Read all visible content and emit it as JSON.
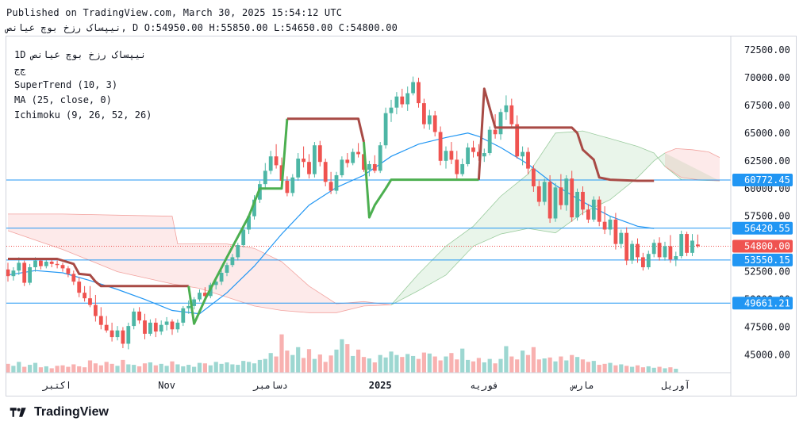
{
  "header": {
    "published": "Published on TradingView.com, March 30, 2025 15:54:12 UTC",
    "symbol_line": "نیپساک رزخ بوچ عیانص, D O:54950.00 H:55850.00 L:54650.00 C:54800.00"
  },
  "legend": {
    "symbol": "1D  نیپساک رزخ بوچ عیانص",
    "exchange": "ج‌ج",
    "indicators": [
      "SuperTrend (10, 3)",
      "MA (25, close, 0)",
      "Ichimoku (9, 26, 52, 26)"
    ]
  },
  "brand": {
    "name": "TradingView"
  },
  "colors": {
    "up": "#4db6a5",
    "down": "#ef5350",
    "supertrend_up": "#4caf50",
    "supertrend_down": "#a84a45",
    "ma": "#2196f3",
    "level": "#2196f3",
    "price_badge": "#ef5350",
    "level_badge": "#2196f3"
  },
  "chart_data": {
    "type": "candlestick",
    "timeframe": "1D",
    "ylim": [
      43500,
      73500
    ],
    "y_ticks": [
      45000,
      47500,
      50000,
      52500,
      55000,
      57500,
      60000,
      62500,
      65000,
      67500,
      70000,
      72500
    ],
    "y_tick_labels": [
      "45000.00",
      "47500.00",
      "50000.00",
      "52500.00",
      "55000.00",
      "57500.00",
      "60000.00",
      "62500.00",
      "65000.00",
      "67500.00",
      "70000.00",
      "72500.00"
    ],
    "x_labels": [
      {
        "label": "اکتبر",
        "i": 9
      },
      {
        "label": "Nov",
        "i": 29
      },
      {
        "label": "دسامبر",
        "i": 48
      },
      {
        "label": "2025",
        "i": 68,
        "bold": true
      },
      {
        "label": "فوریه",
        "i": 87
      },
      {
        "label": "مارس",
        "i": 105
      },
      {
        "label": "آوریل",
        "i": 122
      }
    ],
    "price_levels": [
      {
        "value": 60772.45,
        "label": "60772.45",
        "style": "solid"
      },
      {
        "value": 56420.55,
        "label": "56420.55",
        "style": "solid"
      },
      {
        "value": 53550.15,
        "label": "53550.15",
        "style": "solid"
      },
      {
        "value": 49661.21,
        "label": "49661.21",
        "style": "solid"
      }
    ],
    "last_price": {
      "value": 54800.0,
      "label": "54800.00"
    },
    "ohlc_last": {
      "open": 54950.0,
      "high": 55850.0,
      "low": 54650.0,
      "close": 54800.0
    },
    "candles": [
      [
        52700,
        53300,
        51600,
        52100
      ],
      [
        52100,
        52900,
        51700,
        52600
      ],
      [
        52600,
        53800,
        52200,
        53300
      ],
      [
        53300,
        53500,
        51200,
        51500
      ],
      [
        51500,
        53200,
        51300,
        52900
      ],
      [
        52900,
        53800,
        52500,
        53500
      ],
      [
        53500,
        53700,
        52700,
        53000
      ],
      [
        53000,
        53600,
        52800,
        53400
      ],
      [
        53400,
        53700,
        52900,
        53200
      ],
      [
        53200,
        53500,
        52800,
        53100
      ],
      [
        53100,
        53300,
        52500,
        52800
      ],
      [
        52800,
        53000,
        52000,
        52300
      ],
      [
        52300,
        52600,
        51300,
        51600
      ],
      [
        51600,
        52000,
        50200,
        50600
      ],
      [
        50600,
        51200,
        49800,
        50100
      ],
      [
        50100,
        51200,
        49300,
        49500
      ],
      [
        49500,
        50400,
        48000,
        48500
      ],
      [
        48500,
        49300,
        47300,
        47700
      ],
      [
        47700,
        48500,
        47000,
        47200
      ],
      [
        47200,
        47900,
        46200,
        46600
      ],
      [
        46600,
        47600,
        46300,
        47200
      ],
      [
        47200,
        47500,
        45600,
        46000
      ],
      [
        46000,
        47900,
        45500,
        47600
      ],
      [
        47600,
        49200,
        47300,
        48900
      ],
      [
        48900,
        49300,
        47800,
        48100
      ],
      [
        48100,
        48700,
        46400,
        46900
      ],
      [
        46900,
        48200,
        46700,
        47900
      ],
      [
        47900,
        48300,
        46600,
        47100
      ],
      [
        47100,
        48100,
        46800,
        47700
      ],
      [
        47700,
        48400,
        47200,
        48000
      ],
      [
        48000,
        48200,
        46800,
        47300
      ],
      [
        47300,
        48200,
        47000,
        47900
      ],
      [
        47900,
        49400,
        47600,
        49200
      ],
      [
        49200,
        49900,
        48700,
        49400
      ],
      [
        49400,
        50200,
        49100,
        50000
      ],
      [
        50000,
        50900,
        49800,
        50600
      ],
      [
        50600,
        51100,
        49900,
        50300
      ],
      [
        50300,
        51500,
        50100,
        51300
      ],
      [
        51300,
        51900,
        50900,
        51600
      ],
      [
        51600,
        52600,
        51300,
        52400
      ],
      [
        52400,
        53300,
        52100,
        53100
      ],
      [
        53100,
        54100,
        52900,
        53800
      ],
      [
        53800,
        55100,
        53500,
        54900
      ],
      [
        54900,
        56600,
        54700,
        56300
      ],
      [
        56300,
        57700,
        55900,
        57500
      ],
      [
        57500,
        59400,
        57200,
        59000
      ],
      [
        59000,
        60700,
        58700,
        60400
      ],
      [
        60400,
        62300,
        59900,
        61600
      ],
      [
        61600,
        63400,
        61300,
        62900
      ],
      [
        62900,
        64000,
        61800,
        62100
      ],
      [
        62100,
        62800,
        60300,
        60700
      ],
      [
        60700,
        61100,
        59300,
        59600
      ],
      [
        59600,
        61300,
        59300,
        61000
      ],
      [
        61000,
        63200,
        60700,
        62700
      ],
      [
        62700,
        63800,
        61900,
        62400
      ],
      [
        62400,
        63100,
        60900,
        61300
      ],
      [
        61300,
        64200,
        61000,
        63900
      ],
      [
        63900,
        64300,
        62000,
        62400
      ],
      [
        62400,
        62700,
        60200,
        60600
      ],
      [
        60600,
        61500,
        59500,
        59800
      ],
      [
        59800,
        61500,
        59500,
        61200
      ],
      [
        61200,
        62900,
        61000,
        62600
      ],
      [
        62600,
        63200,
        61900,
        62300
      ],
      [
        62300,
        63600,
        62100,
        63300
      ],
      [
        63300,
        64100,
        62800,
        63100
      ],
      [
        63100,
        63500,
        61500,
        61700
      ],
      [
        61700,
        62500,
        61100,
        62200
      ],
      [
        62200,
        63000,
        61400,
        61600
      ],
      [
        61600,
        64200,
        61400,
        63900
      ],
      [
        63900,
        67300,
        63600,
        66800
      ],
      [
        66800,
        68000,
        66000,
        67300
      ],
      [
        67300,
        68700,
        66700,
        68300
      ],
      [
        68300,
        69000,
        67300,
        67600
      ],
      [
        67600,
        69200,
        67000,
        68600
      ],
      [
        68600,
        70100,
        68400,
        69600
      ],
      [
        69600,
        70000,
        67300,
        67700
      ],
      [
        67700,
        68100,
        65400,
        65800
      ],
      [
        65800,
        67100,
        65300,
        66600
      ],
      [
        66600,
        67000,
        64700,
        65100
      ],
      [
        65100,
        65600,
        62100,
        62500
      ],
      [
        62500,
        63800,
        61800,
        63400
      ],
      [
        63400,
        64200,
        62200,
        62600
      ],
      [
        62600,
        63400,
        60900,
        61300
      ],
      [
        61300,
        62700,
        61100,
        62200
      ],
      [
        62200,
        64100,
        62000,
        63700
      ],
      [
        63700,
        64300,
        62800,
        63300
      ],
      [
        63300,
        64000,
        62500,
        62900
      ],
      [
        62900,
        63600,
        62400,
        63200
      ],
      [
        63200,
        65600,
        63000,
        65300
      ],
      [
        65300,
        66700,
        64500,
        64900
      ],
      [
        64900,
        67200,
        64400,
        66900
      ],
      [
        66900,
        68400,
        66200,
        67500
      ],
      [
        67500,
        68100,
        65400,
        65800
      ],
      [
        65800,
        66600,
        62700,
        62900
      ],
      [
        62900,
        63800,
        62100,
        63300
      ],
      [
        63300,
        63700,
        61300,
        61800
      ],
      [
        61800,
        62100,
        59700,
        60200
      ],
      [
        60200,
        60700,
        58400,
        58800
      ],
      [
        58800,
        60900,
        58500,
        60600
      ],
      [
        60600,
        61200,
        56900,
        57300
      ],
      [
        57300,
        60500,
        57000,
        60100
      ],
      [
        60100,
        61300,
        58100,
        58500
      ],
      [
        58500,
        61200,
        58000,
        60900
      ],
      [
        60900,
        61600,
        57000,
        57400
      ],
      [
        57400,
        60000,
        57100,
        59700
      ],
      [
        59700,
        60200,
        57600,
        58100
      ],
      [
        58100,
        58600,
        56900,
        57200
      ],
      [
        57200,
        59300,
        57000,
        59000
      ],
      [
        59000,
        59300,
        56600,
        57000
      ],
      [
        57000,
        58400,
        55900,
        56300
      ],
      [
        56300,
        57500,
        55800,
        57200
      ],
      [
        57200,
        57800,
        54500,
        55000
      ],
      [
        55000,
        56300,
        54600,
        56000
      ],
      [
        56000,
        56500,
        53100,
        53500
      ],
      [
        53500,
        55300,
        53200,
        55000
      ],
      [
        55000,
        55500,
        53300,
        53800
      ],
      [
        53800,
        54200,
        52600,
        52900
      ],
      [
        52900,
        54400,
        52700,
        54100
      ],
      [
        54100,
        55400,
        53800,
        55100
      ],
      [
        55100,
        55600,
        53500,
        53800
      ],
      [
        53800,
        55200,
        53500,
        54800
      ],
      [
        54800,
        55800,
        53300,
        53600
      ],
      [
        53600,
        54300,
        53000,
        53900
      ],
      [
        53900,
        56200,
        53700,
        55900
      ],
      [
        55900,
        56100,
        53900,
        54200
      ],
      [
        54200,
        55900,
        53900,
        55300
      ],
      [
        54950,
        55850,
        54650,
        54800
      ]
    ],
    "volume": [
      18,
      14,
      22,
      12,
      16,
      20,
      11,
      13,
      9,
      14,
      15,
      12,
      17,
      13,
      11,
      25,
      19,
      15,
      22,
      18,
      14,
      26,
      17,
      16,
      13,
      19,
      21,
      15,
      18,
      14,
      23,
      17,
      13,
      16,
      12,
      20,
      19,
      15,
      22,
      18,
      21,
      17,
      16,
      24,
      22,
      19,
      26,
      28,
      40,
      33,
      78,
      45,
      36,
      52,
      30,
      48,
      28,
      37,
      22,
      35,
      47,
      68,
      58,
      34,
      47,
      32,
      29,
      21,
      36,
      31,
      43,
      36,
      32,
      38,
      34,
      28,
      41,
      39,
      33,
      25,
      33,
      40,
      27,
      49,
      26,
      23,
      30,
      21,
      28,
      19,
      28,
      54,
      33,
      27,
      45,
      36,
      52,
      27,
      29,
      31,
      23,
      33,
      25,
      36,
      32,
      27,
      22,
      24,
      16,
      18,
      20,
      15,
      17,
      14,
      12,
      15,
      11,
      13,
      10,
      12,
      9,
      11,
      8
    ],
    "supertrend": [
      [
        0,
        53650,
        "down"
      ],
      [
        9,
        53650,
        "down"
      ],
      [
        12,
        53200,
        "down"
      ],
      [
        13,
        52300,
        "down"
      ],
      [
        15,
        52200,
        "down"
      ],
      [
        16,
        51600,
        "down"
      ],
      [
        17,
        51200,
        "down"
      ],
      [
        33,
        51200,
        "down"
      ],
      [
        33,
        51200,
        "up"
      ],
      [
        34,
        47800,
        "up"
      ],
      [
        36,
        50000,
        "up"
      ],
      [
        40,
        53800,
        "up"
      ],
      [
        44,
        57500,
        "up"
      ],
      [
        46,
        60000,
        "up"
      ],
      [
        49,
        60000,
        "up"
      ],
      [
        50,
        60000,
        "up"
      ],
      [
        51,
        66300,
        "up"
      ],
      [
        51,
        66300,
        "down"
      ],
      [
        64,
        66300,
        "down"
      ],
      [
        65,
        64200,
        "down"
      ],
      [
        65,
        64200,
        "up"
      ],
      [
        66,
        57400,
        "up"
      ],
      [
        67,
        58500,
        "up"
      ],
      [
        69,
        60000,
        "up"
      ],
      [
        70,
        60800,
        "up"
      ],
      [
        84,
        60800,
        "up"
      ],
      [
        86,
        60800,
        "up"
      ],
      [
        86,
        60800,
        "down"
      ],
      [
        87,
        69000,
        "down"
      ],
      [
        89,
        65500,
        "down"
      ],
      [
        103,
        65500,
        "down"
      ],
      [
        104,
        65000,
        "down"
      ],
      [
        105,
        63500,
        "down"
      ],
      [
        107,
        62600,
        "down"
      ],
      [
        108,
        61000,
        "down"
      ],
      [
        110,
        60800,
        "down"
      ],
      [
        115,
        60700,
        "down"
      ],
      [
        118,
        60700,
        "down"
      ]
    ],
    "ma": [
      [
        0,
        52200
      ],
      [
        5,
        52600
      ],
      [
        10,
        52400
      ],
      [
        15,
        51700
      ],
      [
        20,
        50900
      ],
      [
        25,
        50000
      ],
      [
        30,
        49000
      ],
      [
        35,
        48700
      ],
      [
        40,
        50600
      ],
      [
        45,
        53000
      ],
      [
        50,
        55900
      ],
      [
        55,
        58500
      ],
      [
        60,
        60100
      ],
      [
        65,
        61200
      ],
      [
        70,
        62900
      ],
      [
        75,
        64000
      ],
      [
        80,
        64600
      ],
      [
        84,
        65000
      ],
      [
        86,
        64700
      ],
      [
        90,
        63700
      ],
      [
        95,
        62200
      ],
      [
        100,
        60300
      ],
      [
        105,
        58800
      ],
      [
        110,
        57500
      ],
      [
        115,
        56600
      ],
      [
        118,
        56400
      ]
    ],
    "cloud_bull": [
      [
        70,
        49500
      ],
      [
        75,
        52300
      ],
      [
        80,
        54800
      ],
      [
        85,
        56600
      ],
      [
        90,
        59300
      ],
      [
        95,
        61300
      ],
      [
        100,
        65000
      ],
      [
        105,
        65200
      ],
      [
        110,
        64500
      ],
      [
        115,
        63800
      ],
      [
        118,
        63200
      ],
      [
        120,
        62000
      ],
      [
        123,
        60800
      ],
      [
        130,
        60700
      ]
    ],
    "cloud_bear_top": [
      [
        0,
        57700
      ],
      [
        10,
        57700
      ],
      [
        20,
        57600
      ],
      [
        30,
        57500
      ],
      [
        31,
        55000
      ],
      [
        40,
        55000
      ],
      [
        45,
        54600
      ],
      [
        50,
        53400
      ],
      [
        55,
        51200
      ],
      [
        60,
        49600
      ],
      [
        65,
        49800
      ],
      [
        70,
        49500
      ]
    ],
    "cloud_bear_bottom": [
      [
        0,
        56200
      ],
      [
        10,
        54500
      ],
      [
        20,
        52500
      ],
      [
        30,
        51400
      ],
      [
        35,
        51000
      ],
      [
        40,
        50200
      ],
      [
        45,
        49400
      ],
      [
        50,
        49000
      ],
      [
        55,
        48800
      ],
      [
        60,
        48800
      ],
      [
        65,
        49400
      ],
      [
        70,
        49500
      ]
    ],
    "cloud_bull_lower": [
      [
        70,
        49500
      ],
      [
        75,
        50800
      ],
      [
        80,
        52200
      ],
      [
        85,
        54800
      ],
      [
        90,
        55900
      ],
      [
        95,
        56400
      ],
      [
        100,
        56000
      ],
      [
        105,
        57800
      ],
      [
        110,
        59000
      ],
      [
        115,
        61000
      ],
      [
        118,
        62500
      ],
      [
        120,
        63200
      ]
    ],
    "cloud_bear2_top": [
      [
        120,
        63200
      ],
      [
        122,
        63600
      ],
      [
        125,
        63500
      ],
      [
        128,
        63300
      ],
      [
        130,
        62800
      ]
    ],
    "cloud_bear2_bottom": [
      [
        120,
        62000
      ],
      [
        123,
        61000
      ],
      [
        126,
        60800
      ],
      [
        130,
        60700
      ]
    ]
  }
}
